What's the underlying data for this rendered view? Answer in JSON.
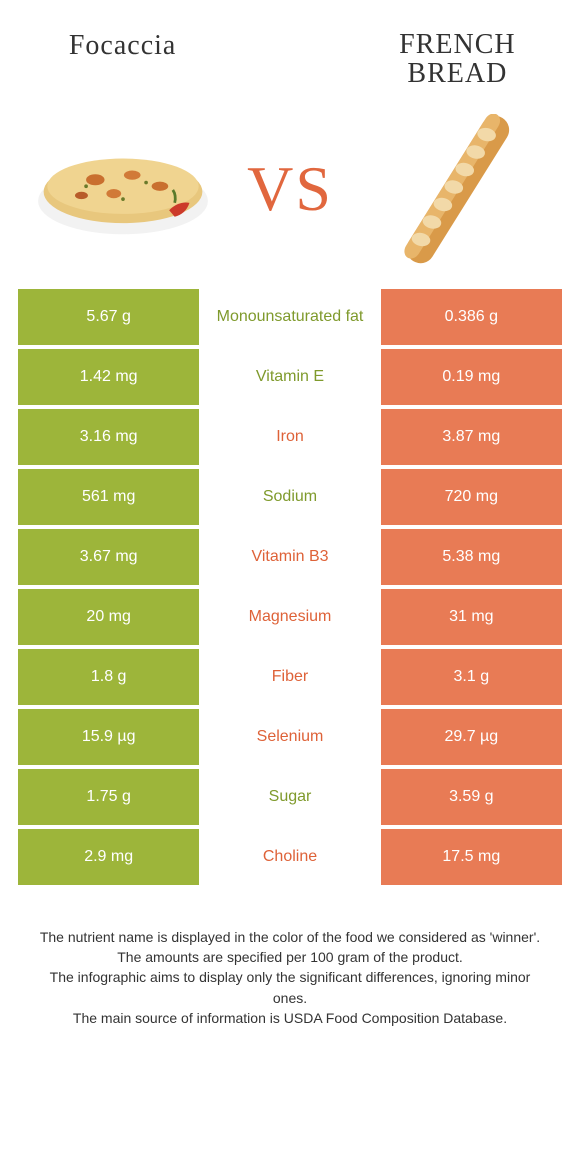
{
  "colors": {
    "left_bg": "#9db53a",
    "right_bg": "#e87b55",
    "left_label": "#7f9a2c",
    "right_label": "#de6238",
    "vs": "#e1673e"
  },
  "foods": {
    "left": {
      "name": "Focaccia"
    },
    "right": {
      "name": "FRENCH BREAD"
    }
  },
  "vs_label": "VS",
  "rows": [
    {
      "nutrient": "Monounsaturated fat",
      "left": "5.67 g",
      "right": "0.386 g",
      "winner": "left"
    },
    {
      "nutrient": "Vitamin E",
      "left": "1.42 mg",
      "right": "0.19 mg",
      "winner": "left"
    },
    {
      "nutrient": "Iron",
      "left": "3.16 mg",
      "right": "3.87 mg",
      "winner": "right"
    },
    {
      "nutrient": "Sodium",
      "left": "561 mg",
      "right": "720 mg",
      "winner": "left"
    },
    {
      "nutrient": "Vitamin B3",
      "left": "3.67 mg",
      "right": "5.38 mg",
      "winner": "right"
    },
    {
      "nutrient": "Magnesium",
      "left": "20 mg",
      "right": "31 mg",
      "winner": "right"
    },
    {
      "nutrient": "Fiber",
      "left": "1.8 g",
      "right": "3.1 g",
      "winner": "right"
    },
    {
      "nutrient": "Selenium",
      "left": "15.9 µg",
      "right": "29.7 µg",
      "winner": "right"
    },
    {
      "nutrient": "Sugar",
      "left": "1.75 g",
      "right": "3.59 g",
      "winner": "left"
    },
    {
      "nutrient": "Choline",
      "left": "2.9 mg",
      "right": "17.5 mg",
      "winner": "right"
    }
  ],
  "footnotes": [
    "The nutrient name is displayed in the color of the food we considered as 'winner'.",
    "The amounts are specified per 100 gram of the product.",
    "The infographic aims to display only the significant differences, ignoring minor ones.",
    "The main source of information is USDA Food Composition Database."
  ]
}
